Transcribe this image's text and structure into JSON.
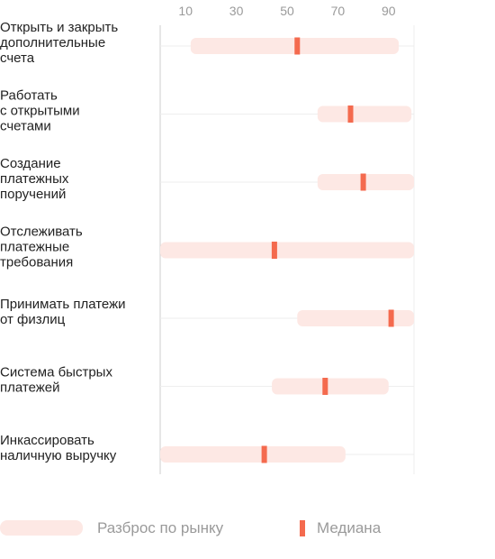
{
  "chart_data": {
    "type": "range",
    "categories": [
      [
        "Открыть и закрыть",
        "дополнительные",
        "счета"
      ],
      [
        "Работать",
        "с открытыми",
        "счетами"
      ],
      [
        "Создание",
        "платежных",
        "поручений"
      ],
      [
        "Отслеживать",
        "платежные",
        "требования"
      ],
      [
        "Принимать платежи",
        "от физлиц"
      ],
      [
        "Система быстрых",
        "платежей"
      ],
      [
        "Инкассировать",
        "наличную выручку"
      ]
    ],
    "ranges": [
      [
        12,
        94
      ],
      [
        62,
        99
      ],
      [
        62,
        100
      ],
      [
        0,
        100
      ],
      [
        54,
        100
      ],
      [
        44,
        90
      ],
      [
        0,
        73
      ]
    ],
    "medians": [
      54,
      75,
      80,
      45,
      91,
      65,
      41
    ],
    "xticks": [
      10,
      30,
      50,
      70,
      90
    ],
    "xlim": [
      0,
      100
    ],
    "grid": true,
    "legend": {
      "range_label": "Разброс по рынку",
      "median_label": "Медиана",
      "placement": "bottom"
    },
    "colors": {
      "range": "#fde8e4",
      "median": "#f46a4e",
      "grid": "#eeeeee",
      "axis": "#cccccc"
    }
  }
}
